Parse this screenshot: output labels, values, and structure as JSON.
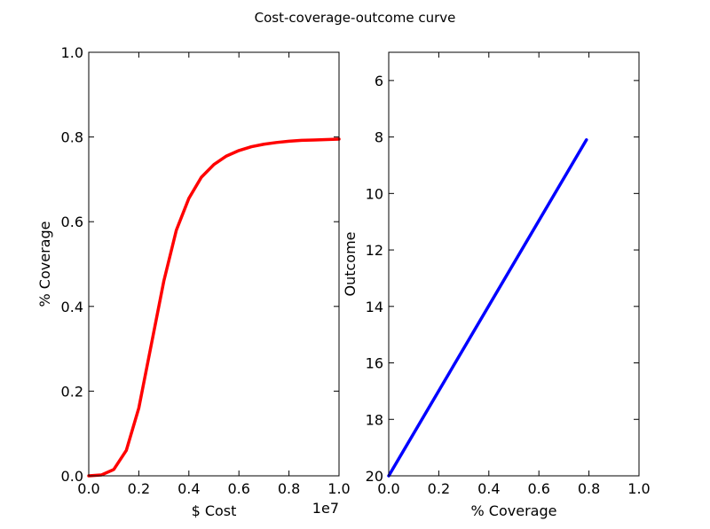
{
  "figure": {
    "title": "Cost-coverage-outcome curve"
  },
  "chart_data": [
    {
      "type": "line",
      "xlabel": "$ Cost",
      "ylabel": "% Coverage",
      "x_offset_label": "1e7",
      "xlim": [
        0.0,
        1.0
      ],
      "ylim": [
        0.0,
        1.0
      ],
      "xticks": [
        "0.0",
        "0.2",
        "0.4",
        "0.6",
        "0.8",
        "1.0"
      ],
      "yticks": [
        "0.0",
        "0.2",
        "0.4",
        "0.6",
        "0.8",
        "1.0"
      ],
      "grid": false,
      "color": "#ff0000",
      "x": [
        0.0,
        0.05,
        0.1,
        0.15,
        0.2,
        0.25,
        0.3,
        0.35,
        0.4,
        0.45,
        0.5,
        0.55,
        0.6,
        0.65,
        0.7,
        0.75,
        0.8,
        0.85,
        0.9,
        0.95,
        1.0
      ],
      "y": [
        0.0,
        0.002,
        0.015,
        0.06,
        0.16,
        0.31,
        0.46,
        0.58,
        0.655,
        0.705,
        0.735,
        0.755,
        0.768,
        0.777,
        0.783,
        0.787,
        0.79,
        0.792,
        0.793,
        0.794,
        0.795
      ]
    },
    {
      "type": "line",
      "xlabel": "% Coverage",
      "ylabel": "Outcome",
      "xlim": [
        0.0,
        1.0
      ],
      "ylim": [
        20,
        5
      ],
      "xticks": [
        "0.0",
        "0.2",
        "0.4",
        "0.6",
        "0.8",
        "1.0"
      ],
      "yticks": [
        "6",
        "8",
        "10",
        "12",
        "14",
        "16",
        "18",
        "20"
      ],
      "grid": false,
      "color": "#0000ff",
      "x": [
        0.0,
        0.79
      ],
      "y": [
        20.0,
        8.1
      ]
    }
  ]
}
